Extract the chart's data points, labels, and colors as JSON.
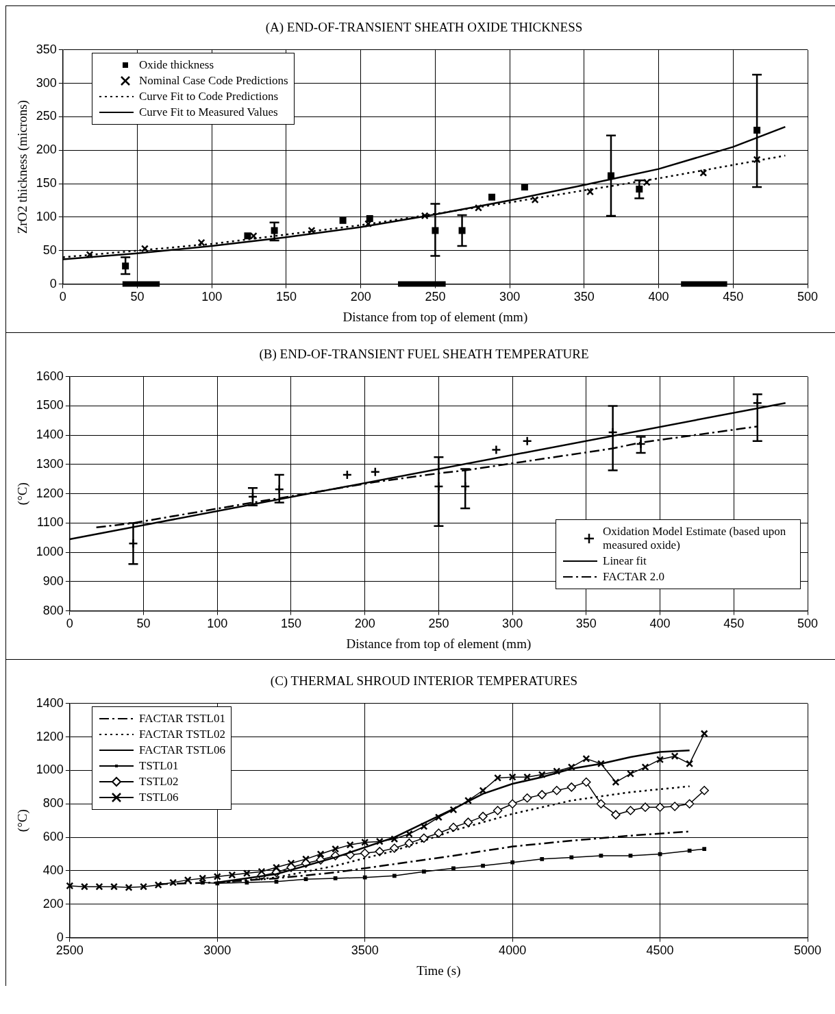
{
  "chart_data": [
    {
      "type": "scatter",
      "title": "(A) END-OF-TRANSIENT SHEATH OXIDE THICKNESS",
      "xlabel": "Distance from top of element (mm)",
      "ylabel": "ZrO2 thickness (microns)",
      "xlim": [
        0,
        500
      ],
      "xticks": [
        0,
        50,
        100,
        150,
        200,
        250,
        300,
        350,
        400,
        450,
        500
      ],
      "ylim": [
        0,
        350
      ],
      "yticks": [
        0,
        50,
        100,
        150,
        200,
        250,
        300,
        350
      ],
      "grid": true,
      "legend": "top left",
      "series": [
        {
          "type": "line",
          "line_style": "solid",
          "marker": "none",
          "color": "#000000",
          "x": [
            40,
            65,
            145,
            225,
            257,
            336,
            415,
            446
          ],
          "values": [
            0,
            0,
            null,
            0,
            0,
            null,
            0,
            0
          ]
        },
        {
          "name": "Oxide thickness",
          "type": "scatter",
          "marker": "square",
          "color": "#000000",
          "x": [
            42,
            124,
            142,
            188,
            206,
            250,
            268,
            288,
            310,
            368,
            387,
            466
          ],
          "values": [
            27,
            72,
            80,
            95,
            98,
            80,
            80,
            130,
            145,
            162,
            142,
            230
          ],
          "errors": [
            [
              15,
              40
            ],
            null,
            [
              65,
              92
            ],
            null,
            null,
            [
              42,
              120
            ],
            [
              57,
              103
            ],
            null,
            null,
            [
              102,
              222
            ],
            [
              128,
              155
            ],
            [
              145,
              313
            ]
          ]
        },
        {
          "name": "Nominal Case Code Predictions",
          "type": "scatter",
          "marker": "cross",
          "color": "#000000",
          "x": [
            18,
            55,
            93,
            128,
            167,
            205,
            243,
            279,
            317,
            354,
            392,
            430,
            466
          ],
          "values": [
            44,
            53,
            62,
            72,
            80,
            90,
            102,
            114,
            126,
            138,
            152,
            166,
            186
          ]
        },
        {
          "name": "Curve Fit to Code Predictions",
          "type": "line",
          "line_style": "dotted",
          "marker": "none",
          "color": "#000000",
          "x": [
            0,
            100,
            200,
            300,
            400,
            485
          ],
          "values": [
            40,
            60,
            88,
            122,
            158,
            192
          ]
        },
        {
          "name": "Curve Fit to Measured Values",
          "type": "line",
          "line_style": "solid",
          "marker": "none",
          "color": "#000000",
          "x": [
            0,
            50,
            100,
            150,
            200,
            250,
            300,
            350,
            400,
            450,
            485
          ],
          "values": [
            37,
            46,
            57,
            70,
            85,
            104,
            125,
            148,
            172,
            205,
            235
          ]
        }
      ]
    },
    {
      "type": "scatter",
      "title": "(B) END-OF-TRANSIENT FUEL SHEATH TEMPERATURE",
      "xlabel": "Distance from top of element (mm)",
      "ylabel": "(°C)",
      "xlim": [
        0,
        500
      ],
      "xticks": [
        0,
        50,
        100,
        150,
        200,
        250,
        300,
        350,
        400,
        450,
        500
      ],
      "ylim": [
        800,
        1600
      ],
      "yticks": [
        800,
        900,
        1000,
        1100,
        1200,
        1300,
        1400,
        1500,
        1600
      ],
      "grid": true,
      "legend": "bottom right",
      "series": [
        {
          "name": "Oxidation Model Estimate (based upon measured oxide)",
          "type": "scatter",
          "marker": "plus",
          "color": "#000000",
          "x": [
            43,
            124,
            142,
            188,
            207,
            250,
            268,
            289,
            310,
            368,
            387,
            466
          ],
          "values": [
            1030,
            1190,
            1215,
            1265,
            1275,
            1225,
            1225,
            1350,
            1380,
            1410,
            1370,
            1510
          ],
          "errors": [
            [
              960,
              1100
            ],
            [
              1160,
              1220
            ],
            [
              1170,
              1265
            ],
            null,
            null,
            [
              1090,
              1325
            ],
            [
              1150,
              1285
            ],
            null,
            null,
            [
              1280,
              1500
            ],
            [
              1340,
              1395
            ],
            [
              1380,
              1540
            ]
          ]
        },
        {
          "name": "Linear fit",
          "type": "line",
          "line_style": "solid",
          "marker": "none",
          "color": "#000000",
          "x": [
            0,
            485
          ],
          "values": [
            1045,
            1510
          ]
        },
        {
          "name": "FACTAR 2.0",
          "type": "line",
          "line_style": "dashdot",
          "marker": "none",
          "color": "#000000",
          "x": [
            18,
            43,
            124,
            142,
            207,
            250,
            268,
            368,
            387,
            466
          ],
          "values": [
            1085,
            1100,
            1170,
            1185,
            1240,
            1270,
            1280,
            1355,
            1375,
            1430
          ]
        }
      ]
    },
    {
      "type": "line",
      "title": "(C) THERMAL SHROUD INTERIOR TEMPERATURES",
      "xlabel": "Time (s)",
      "ylabel": "(°C)",
      "xlim": [
        2500,
        5000
      ],
      "xticks": [
        2500,
        3000,
        3500,
        4000,
        4500,
        5000
      ],
      "ylim": [
        0,
        1400
      ],
      "yticks": [
        0,
        200,
        400,
        600,
        800,
        1000,
        1200,
        1400
      ],
      "grid": true,
      "legend": "top left",
      "series": [
        {
          "name": "FACTAR TSTL01",
          "line_style": "dashdot",
          "marker": "none",
          "color": "#000000",
          "x": [
            2800,
            3000,
            3200,
            3400,
            3600,
            3800,
            4000,
            4200,
            4400,
            4600
          ],
          "values": [
            320,
            330,
            355,
            390,
            440,
            490,
            545,
            580,
            610,
            635
          ]
        },
        {
          "name": "FACTAR TSTL02",
          "line_style": "dotted",
          "marker": "none",
          "color": "#000000",
          "x": [
            3000,
            3200,
            3400,
            3600,
            3800,
            4000,
            4200,
            4400,
            4600
          ],
          "values": [
            330,
            360,
            430,
            520,
            640,
            740,
            820,
            870,
            905
          ]
        },
        {
          "name": "FACTAR TSTL06",
          "line_style": "solid",
          "marker": "none",
          "color": "#000000",
          "x": [
            3000,
            3200,
            3400,
            3600,
            3800,
            3900,
            4000,
            4100,
            4200,
            4300,
            4400,
            4500,
            4600
          ],
          "values": [
            330,
            380,
            480,
            600,
            770,
            860,
            920,
            960,
            1010,
            1040,
            1080,
            1110,
            1120
          ]
        },
        {
          "name": "TSTL01",
          "line_style": "solid",
          "marker": "square",
          "color": "#000000",
          "x": [
            2950,
            3000,
            3100,
            3200,
            3300,
            3400,
            3500,
            3600,
            3700,
            3800,
            3900,
            4000,
            4100,
            4200,
            4300,
            4400,
            4500,
            4600,
            4650
          ],
          "values": [
            330,
            325,
            330,
            335,
            350,
            355,
            360,
            370,
            395,
            415,
            430,
            450,
            470,
            480,
            490,
            490,
            500,
            520,
            530
          ]
        },
        {
          "name": "TSTL02",
          "line_style": "solid",
          "marker": "diamond",
          "color": "#000000",
          "x": [
            3150,
            3200,
            3250,
            3300,
            3350,
            3400,
            3450,
            3500,
            3550,
            3600,
            3650,
            3700,
            3750,
            3800,
            3850,
            3900,
            3950,
            4000,
            4050,
            4100,
            4150,
            4200,
            4250,
            4300,
            4350,
            4400,
            4450,
            4500,
            4550,
            4600,
            4650
          ],
          "values": [
            370,
            390,
            420,
            445,
            465,
            490,
            495,
            505,
            515,
            535,
            565,
            595,
            625,
            660,
            690,
            725,
            760,
            800,
            835,
            855,
            880,
            900,
            930,
            800,
            735,
            760,
            780,
            780,
            785,
            800,
            880
          ]
        },
        {
          "name": "TSTL06",
          "line_style": "solid",
          "marker": "cross",
          "color": "#000000",
          "x": [
            2500,
            2550,
            2600,
            2650,
            2700,
            2750,
            2800,
            2850,
            2900,
            2950,
            3000,
            3050,
            3100,
            3150,
            3200,
            3250,
            3300,
            3350,
            3400,
            3450,
            3500,
            3550,
            3600,
            3650,
            3700,
            3750,
            3800,
            3850,
            3900,
            3950,
            4000,
            4050,
            4100,
            4150,
            4200,
            4250,
            4300,
            4350,
            4400,
            4450,
            4500,
            4550,
            4600,
            4650
          ],
          "values": [
            310,
            305,
            305,
            305,
            300,
            305,
            315,
            330,
            345,
            355,
            365,
            375,
            385,
            395,
            420,
            445,
            470,
            500,
            530,
            555,
            570,
            575,
            590,
            620,
            665,
            720,
            765,
            820,
            880,
            955,
            960,
            960,
            975,
            995,
            1020,
            1070,
            1040,
            930,
            980,
            1020,
            1065,
            1085,
            1040,
            1220
          ]
        }
      ]
    }
  ]
}
